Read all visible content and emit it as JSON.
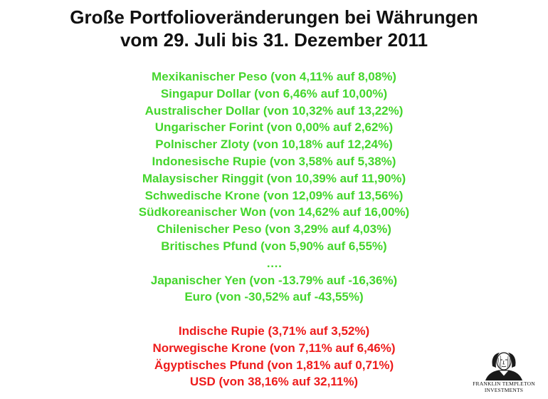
{
  "title": {
    "line1": "Große Portfolioveränderungen bei Währungen",
    "line2": "vom 29. Juli bis 31. Dezember 2011"
  },
  "increases": [
    "Mexikanischer Peso (von 4,11% auf 8,08%)",
    "Singapur Dollar (von 6,46% auf 10,00%)",
    "Australischer Dollar (von 10,32% auf 13,22%)",
    "Ungarischer Forint (von 0,00% auf 2,62%)",
    "Polnischer Zloty (von 10,18% auf 12,24%)",
    "Indonesische Rupie (von 3,58% auf 5,38%)",
    "Malaysischer Ringgit (von 10,39% auf 11,90%)",
    "Schwedische Krone (von 12,09% auf 13,56%)",
    "Südkoreanischer Won (von 14,62% auf 16,00%)",
    "Chilenischer Peso (von 3,29% auf 4,03%)",
    "Britisches Pfund (von 5,90% auf 6,55%)",
    "….",
    "Japanischer Yen (von -13.79% auf -16,36%)",
    "Euro (von -30,52% auf -43,55%)"
  ],
  "decreases": [
    "Indische Rupie (3,71% auf 3,52%)",
    "Norwegische Krone (von 7,11% auf 6,46%)",
    "Ägyptisches Pfund (von 1,81% auf 0,71%)",
    "USD (von 38,16% auf 32,11%)"
  ],
  "logo": {
    "line1": "FRANKLIN TEMPLETON",
    "line2": "INVESTMENTS",
    "icon": "benjamin-franklin-portrait-icon"
  },
  "colors": {
    "increase": "#44d62c",
    "decrease": "#ee1c1c",
    "title": "#111111"
  }
}
